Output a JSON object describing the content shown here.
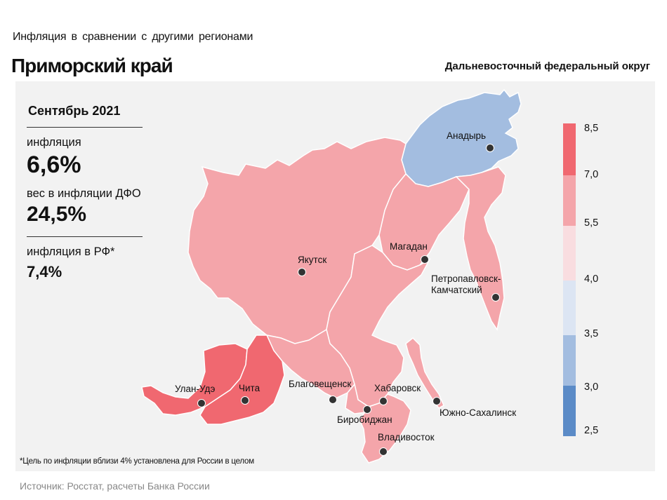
{
  "header": {
    "suptitle": "Инфляция  в сравнении  с другими  регионами",
    "title": "Приморский край",
    "district": "Дальневосточный федеральный округ"
  },
  "info": {
    "period": "Сентябрь 2021",
    "inflation_label": "инфляция",
    "inflation_value": "6,6%",
    "weight_label": "вес в инфляции  ДФО",
    "weight_value": "24,5%",
    "rf_label": "инфляция  в РФ*",
    "rf_value": "7,4%"
  },
  "legend": {
    "ticks": [
      "8,5",
      "7,0",
      "5,5",
      "4,0",
      "3,5",
      "3,0",
      "2,5"
    ],
    "colors": {
      "c_7_85": "#f06870",
      "c_55_7": "#f4a5aa",
      "c_4_55": "#f9dde0",
      "c_35_4": "#dce5f3",
      "c_3_35": "#a3bde0",
      "c_25_3": "#5b8bc7"
    }
  },
  "map": {
    "colors": {
      "high": "#f06870",
      "mid": "#f4a5aa",
      "blue": "#a3bde0",
      "border": "#ffffff",
      "dot": "#333333"
    },
    "cities": {
      "anadyr": "Анадырь",
      "yakutsk": "Якутск",
      "magadan": "Магадан",
      "petropavlovsk_1": "Петропавловск-",
      "petropavlovsk_2": "Камчатский",
      "ulan_ude": "Улан-Удэ",
      "chita": "Чита",
      "blagoveshchensk": "Благовещенск",
      "khabarovsk": "Хабаровск",
      "birobidzhan": "Биробиджан",
      "yuzhno": "Южно-Сахалинск",
      "vladivostok": "Владивосток"
    }
  },
  "footnote": "*Цель по инфляции вблизи 4% установлена для России в целом",
  "source": "Источник: Росстат, расчеты Банка России"
}
